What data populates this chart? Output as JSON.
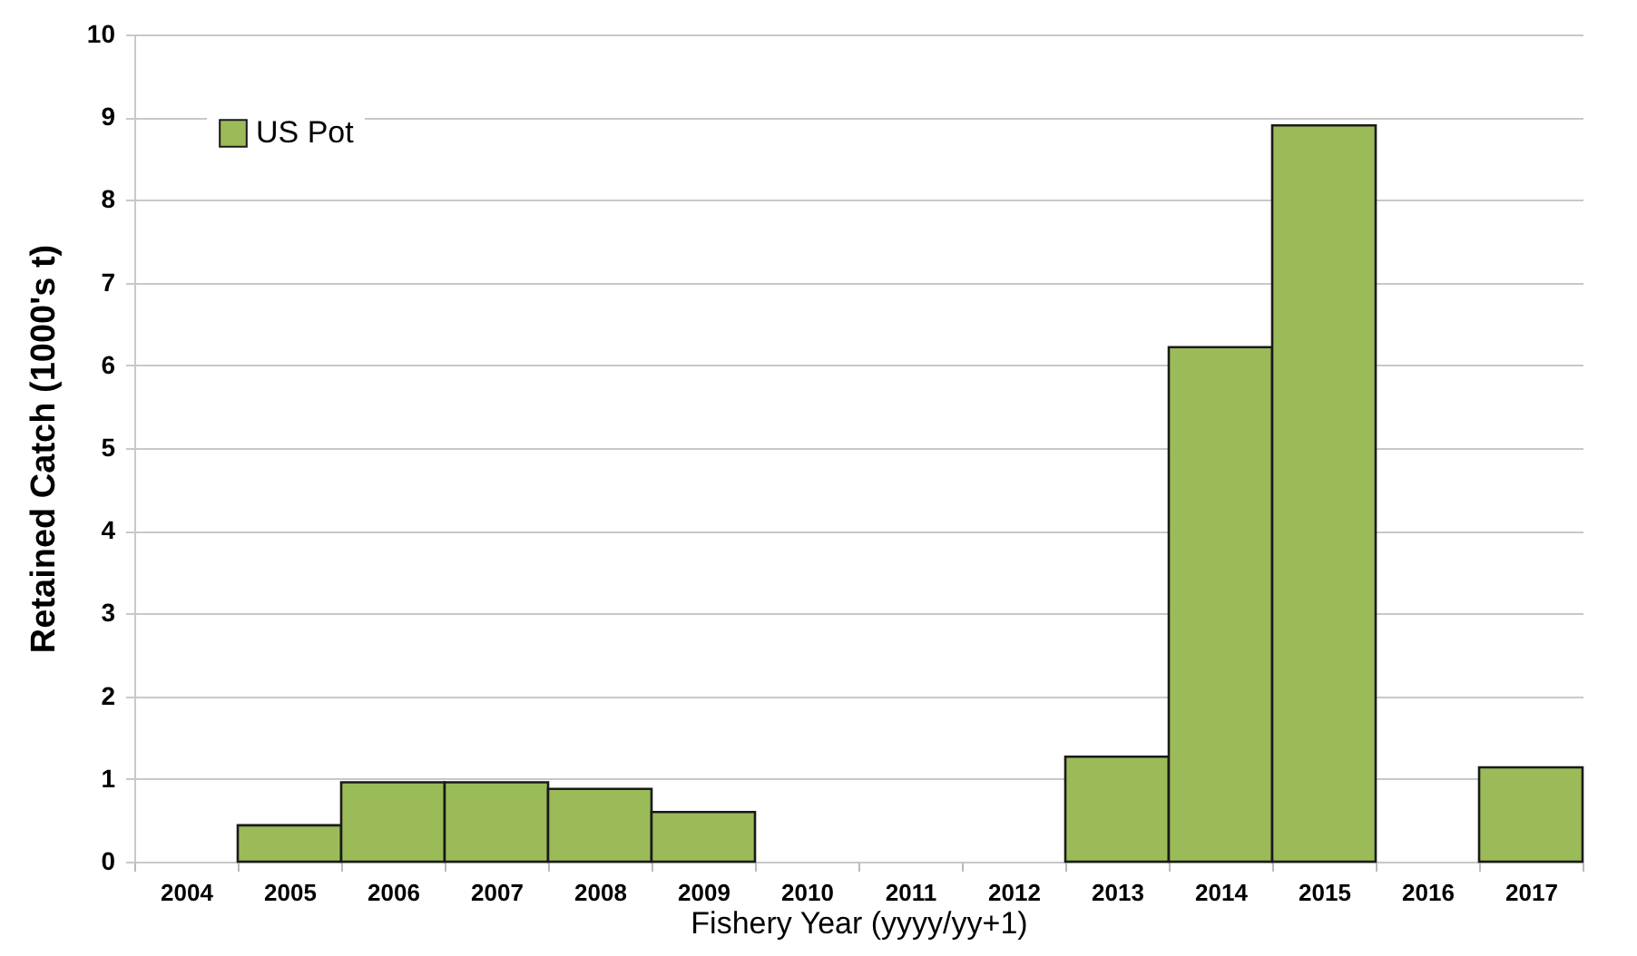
{
  "chart_data": {
    "type": "bar",
    "xlabel": "Fishery Year (yyyy/yy+1)",
    "ylabel": "Retained Catch (1000's t)",
    "categories": [
      "2004",
      "2005",
      "2006",
      "2007",
      "2008",
      "2009",
      "2010",
      "2011",
      "2012",
      "2013",
      "2014",
      "2015",
      "2016",
      "2017"
    ],
    "series": [
      {
        "name": "US Pot",
        "color": "#9bbb59",
        "values": [
          null,
          0.44,
          0.96,
          0.96,
          0.88,
          0.6,
          null,
          null,
          null,
          1.27,
          6.22,
          8.9,
          null,
          1.14
        ]
      }
    ],
    "ylim": [
      0,
      10
    ],
    "yticks": [
      0,
      1,
      2,
      3,
      4,
      5,
      6,
      7,
      8,
      9,
      10
    ],
    "grid": "y",
    "legend": "top left"
  }
}
